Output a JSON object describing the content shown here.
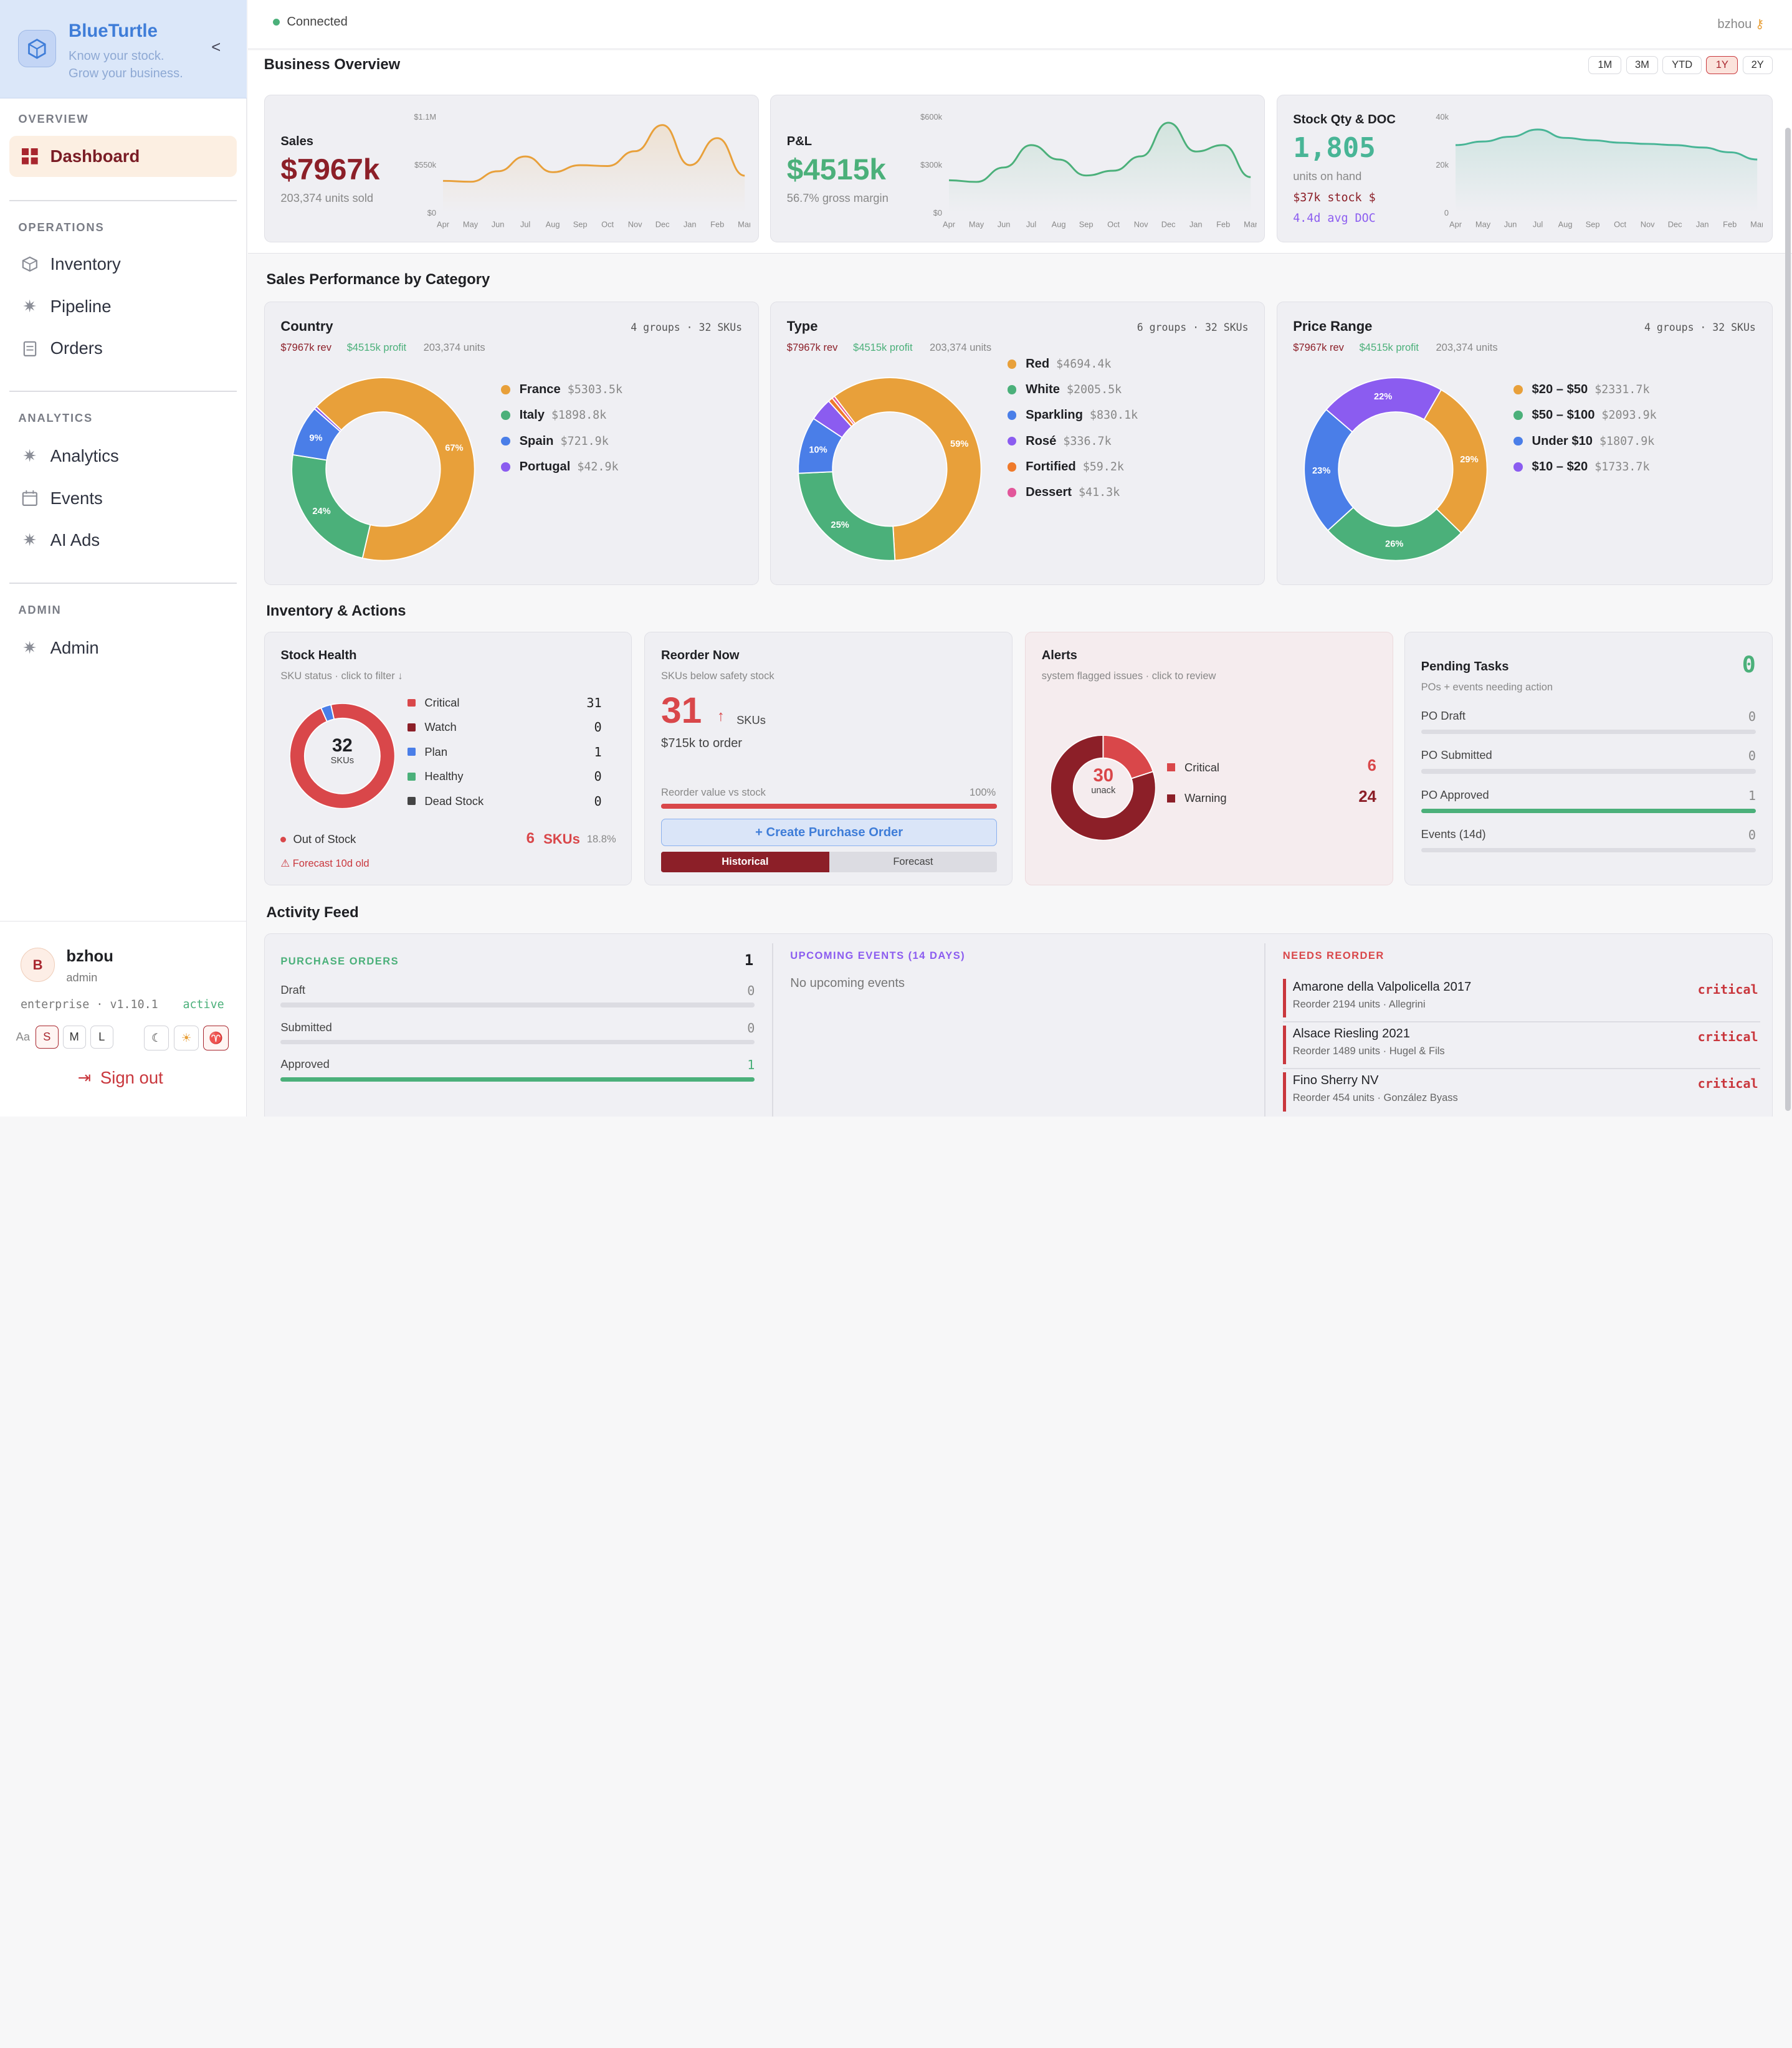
{
  "app": {
    "name": "BlueTurtle",
    "tagline_1": "Know your stock.",
    "tagline_2": "Grow your business.",
    "collapse": "<"
  },
  "sidebar": {
    "sections": {
      "overview": "OVERVIEW",
      "operations": "OPERATIONS",
      "analytics": "ANALYTICS",
      "admin": "ADMIN"
    },
    "items": {
      "dashboard": "Dashboard",
      "inventory": "Inventory",
      "pipeline": "Pipeline",
      "orders": "Orders",
      "analytics": "Analytics",
      "events": "Events",
      "ai_ads": "AI Ads",
      "admin": "Admin"
    }
  },
  "user": {
    "initial": "B",
    "name": "bzhou",
    "role": "admin",
    "plan": "enterprise · v1.10.1",
    "status": "active",
    "font_label": "Aa",
    "sizes": [
      "S",
      "M",
      "L"
    ],
    "selected_size": "S",
    "signout": "Sign out"
  },
  "topbar": {
    "status": "Connected",
    "user": "bzhou"
  },
  "overview": {
    "title": "Business Overview",
    "ranges": [
      "1M",
      "3M",
      "YTD",
      "1Y",
      "2Y"
    ],
    "selected_range": "1Y",
    "months": [
      "Apr",
      "May",
      "Jun",
      "Jul",
      "Aug",
      "Sep",
      "Oct",
      "Nov",
      "Dec",
      "Jan",
      "Feb",
      "Mar"
    ],
    "sales": {
      "title": "Sales",
      "value": "$7967k",
      "sub": "203,374 units sold",
      "ymax": "$1.1M",
      "ymid": "$550k",
      "ymin": "$0",
      "color": "#e8a03a"
    },
    "pl": {
      "title": "P&L",
      "value": "$4515k",
      "sub": "56.7% gross margin",
      "ymax": "$600k",
      "ymid": "$300k",
      "ymin": "$0",
      "color": "#4bb07a"
    },
    "stock": {
      "title": "Stock Qty & DOC",
      "value": "1,805",
      "sub": "units on hand",
      "stock_val": "$37k stock $",
      "doc": "4.4d avg DOC",
      "ymax": "40k",
      "ymid": "20k",
      "ymin": "0",
      "color": "#48b596"
    }
  },
  "chart_data": [
    {
      "type": "line",
      "title": "Sales",
      "x": [
        "Apr",
        "May",
        "Jun",
        "Jul",
        "Aug",
        "Sep",
        "Oct",
        "Nov",
        "Dec",
        "Jan",
        "Feb",
        "Mar"
      ],
      "values": [
        360,
        350,
        470,
        640,
        460,
        540,
        530,
        700,
        1000,
        540,
        850,
        420
      ],
      "ylim": [
        0,
        1100000
      ]
    },
    {
      "type": "line",
      "title": "P&L",
      "x": [
        "Apr",
        "May",
        "Jun",
        "Jul",
        "Aug",
        "Sep",
        "Oct",
        "Nov",
        "Dec",
        "Jan",
        "Feb",
        "Mar"
      ],
      "values": [
        200,
        190,
        280,
        420,
        330,
        230,
        260,
        350,
        560,
        380,
        420,
        220
      ],
      "ylim": [
        0,
        600000
      ]
    },
    {
      "type": "line",
      "title": "Stock Qty & DOC",
      "x": [
        "Apr",
        "May",
        "Jun",
        "Jul",
        "Aug",
        "Sep",
        "Oct",
        "Nov",
        "Dec",
        "Jan",
        "Feb",
        "Mar"
      ],
      "values": [
        28000,
        29500,
        31500,
        34500,
        31000,
        30000,
        29000,
        28500,
        28000,
        27000,
        25000,
        22000
      ],
      "ylim": [
        0,
        40000
      ]
    }
  ],
  "performance": {
    "title": "Sales Performance by Category",
    "country": {
      "title": "Country",
      "meta": "4 groups · 32 SKUs",
      "rev": "$7967k rev",
      "profit": "$4515k profit",
      "units": "203,374 units",
      "items": [
        {
          "name": "France",
          "value": "$5303.5k",
          "color": "#e8a03a",
          "pct": 67,
          "label": "67%"
        },
        {
          "name": "Italy",
          "value": "$1898.8k",
          "color": "#4bb07a",
          "pct": 24,
          "label": "24%"
        },
        {
          "name": "Spain",
          "value": "$721.9k",
          "color": "#4a7ee8",
          "pct": 9,
          "label": "9%"
        },
        {
          "name": "Portugal",
          "value": "$42.9k",
          "color": "#8b5cf0",
          "pct": 0.5,
          "label": ""
        }
      ]
    },
    "type": {
      "title": "Type",
      "meta": "6 groups · 32 SKUs",
      "rev": "$7967k rev",
      "profit": "$4515k profit",
      "units": "203,374 units",
      "items": [
        {
          "name": "Red",
          "value": "$4694.4k",
          "color": "#e8a03a",
          "pct": 59,
          "label": "59%"
        },
        {
          "name": "White",
          "value": "$2005.5k",
          "color": "#4bb07a",
          "pct": 25,
          "label": "25%"
        },
        {
          "name": "Sparkling",
          "value": "$830.1k",
          "color": "#4a7ee8",
          "pct": 10,
          "label": "10%"
        },
        {
          "name": "Rosé",
          "value": "$336.7k",
          "color": "#8b5cf0",
          "pct": 4,
          "label": ""
        },
        {
          "name": "Fortified",
          "value": "$59.2k",
          "color": "#ef7a2b",
          "pct": 0.8,
          "label": ""
        },
        {
          "name": "Dessert",
          "value": "$41.3k",
          "color": "#e2569a",
          "pct": 0.5,
          "label": ""
        }
      ]
    },
    "price": {
      "title": "Price Range",
      "meta": "4 groups · 32 SKUs",
      "rev": "$7967k rev",
      "profit": "$4515k profit",
      "units": "203,374 units",
      "items": [
        {
          "name": "$20 – $50",
          "value": "$2331.7k",
          "color": "#e8a03a",
          "pct": 29,
          "label": "29%"
        },
        {
          "name": "$50 – $100",
          "value": "$2093.9k",
          "color": "#4bb07a",
          "pct": 26,
          "label": "26%"
        },
        {
          "name": "Under $10",
          "value": "$1807.9k",
          "color": "#4a7ee8",
          "pct": 23,
          "label": "23%"
        },
        {
          "name": "$10 – $20",
          "value": "$1733.7k",
          "color": "#8b5cf0",
          "pct": 22,
          "label": "22%"
        }
      ]
    }
  },
  "inventory": {
    "title": "Inventory & Actions",
    "health": {
      "title": "Stock Health",
      "sub": "SKU status · click to filter ↓",
      "center": "32",
      "center_sub": "SKUs",
      "rows": [
        {
          "name": "Critical",
          "value": "31",
          "color": "#d9474a"
        },
        {
          "name": "Watch",
          "value": "0",
          "color": "#8c1f28"
        },
        {
          "name": "Plan",
          "value": "1",
          "color": "#4a7ee8"
        },
        {
          "name": "Healthy",
          "value": "0",
          "color": "#4bb07a"
        },
        {
          "name": "Dead Stock",
          "value": "0",
          "color": "#444"
        }
      ],
      "oos_label": "Out of Stock",
      "oos_value": "6",
      "oos_unit": "SKUs",
      "oos_pct": "18.8%",
      "forecast_warn": "⚠ Forecast 10d old"
    },
    "reorder": {
      "title": "Reorder Now",
      "sub": "SKUs below safety stock",
      "count": "31",
      "arrow": "↑",
      "unit": "SKUs",
      "amount": "$715k to order",
      "bar_label": "Reorder value vs stock",
      "bar_pct_label": "100%",
      "bar_pct": 1.0,
      "create": "+ Create Purchase Order",
      "tab_hist": "Historical",
      "tab_fore": "Forecast"
    },
    "alerts": {
      "title": "Alerts",
      "sub": "system flagged issues · click to review",
      "center": "30",
      "center_sub": "unack",
      "critical_label": "Critical",
      "critical": "6",
      "warning_label": "Warning",
      "warning": "24"
    },
    "tasks": {
      "title": "Pending Tasks",
      "count": "0",
      "sub": "POs + events needing action",
      "rows": [
        {
          "name": "PO Draft",
          "value": "0",
          "fill": 0
        },
        {
          "name": "PO Submitted",
          "value": "0",
          "fill": 0
        },
        {
          "name": "PO Approved",
          "value": "1",
          "fill": 1
        },
        {
          "name": "Events (14d)",
          "value": "0",
          "fill": 0
        }
      ]
    }
  },
  "activity": {
    "title": "Activity Feed",
    "po": {
      "title": "PURCHASE ORDERS",
      "count": "1",
      "rows": [
        {
          "name": "Draft",
          "value": "0",
          "fill": 0
        },
        {
          "name": "Submitted",
          "value": "0",
          "fill": 0
        },
        {
          "name": "Approved",
          "value": "1",
          "fill": 1
        }
      ]
    },
    "events": {
      "title": "UPCOMING EVENTS (14 DAYS)",
      "empty": "No upcoming events"
    },
    "reorder": {
      "title": "NEEDS REORDER",
      "items": [
        {
          "name": "Amarone della Valpolicella 2017",
          "sub": "Reorder 2194 units · Allegrini",
          "tag": "critical"
        },
        {
          "name": "Alsace Riesling 2021",
          "sub": "Reorder 1489 units · Hugel & Fils",
          "tag": "critical"
        },
        {
          "name": "Fino Sherry NV",
          "sub": "Reorder 454 units · González Byass",
          "tag": "critical"
        }
      ]
    }
  }
}
